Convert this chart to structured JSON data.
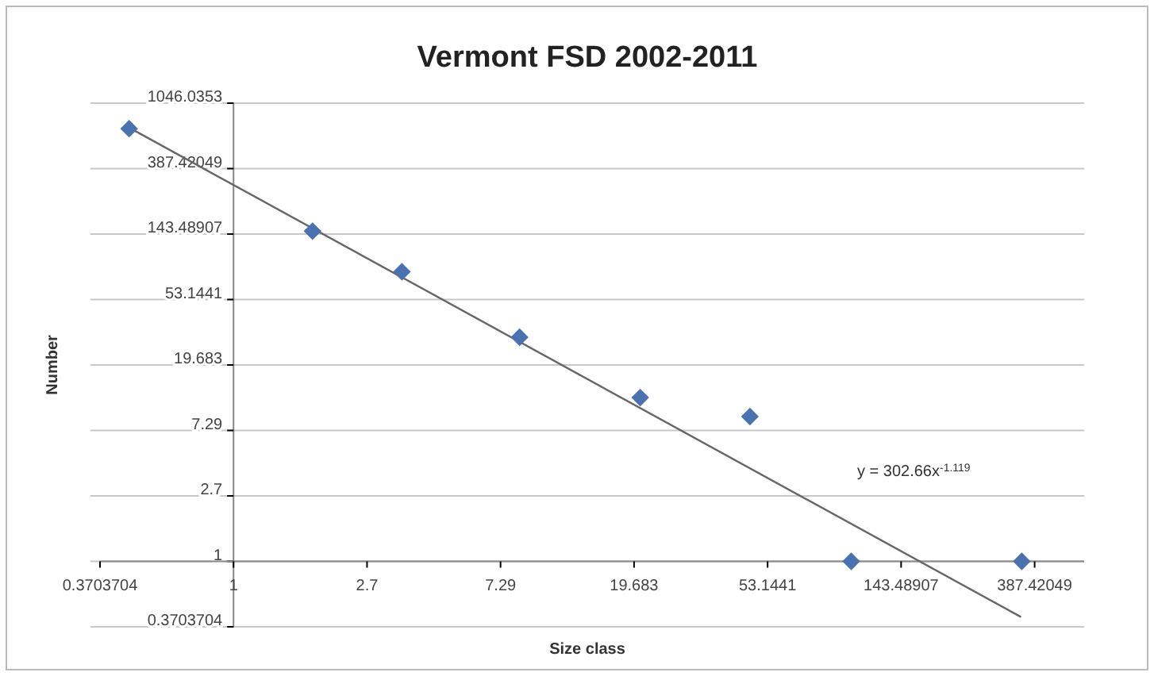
{
  "chart_data": {
    "type": "scatter",
    "title": "Vermont FSD 2002-2011",
    "xlabel": "Size class",
    "ylabel": "Number",
    "log": "xy",
    "grid": "y",
    "xlim": [
      0.3703704,
      560
    ],
    "ylim": [
      0.3703704,
      1046.0353
    ],
    "xticks": [
      0.3703704,
      1,
      2.7,
      7.29,
      19.683,
      53.1441,
      143.48907,
      387.42049
    ],
    "yticks": [
      0.3703704,
      1,
      2.7,
      7.29,
      19.683,
      53.1441,
      143.48907,
      387.42049,
      1046.0353
    ],
    "series": [
      {
        "type": "scatter",
        "marker": "diamond",
        "color": "#4a72b0",
        "x": [
          0.46,
          1.8,
          3.5,
          8.4,
          20.6,
          46.6,
          99,
          352
        ],
        "values": [
          710,
          150,
          81,
          30,
          12,
          9,
          1,
          1
        ]
      },
      {
        "type": "line",
        "color": "#666666",
        "x": [
          0.46,
          350
        ],
        "values": [
          721,
          0.43
        ]
      }
    ],
    "annotations": [
      "y = 302.66x$^{-1.119}$"
    ]
  }
}
